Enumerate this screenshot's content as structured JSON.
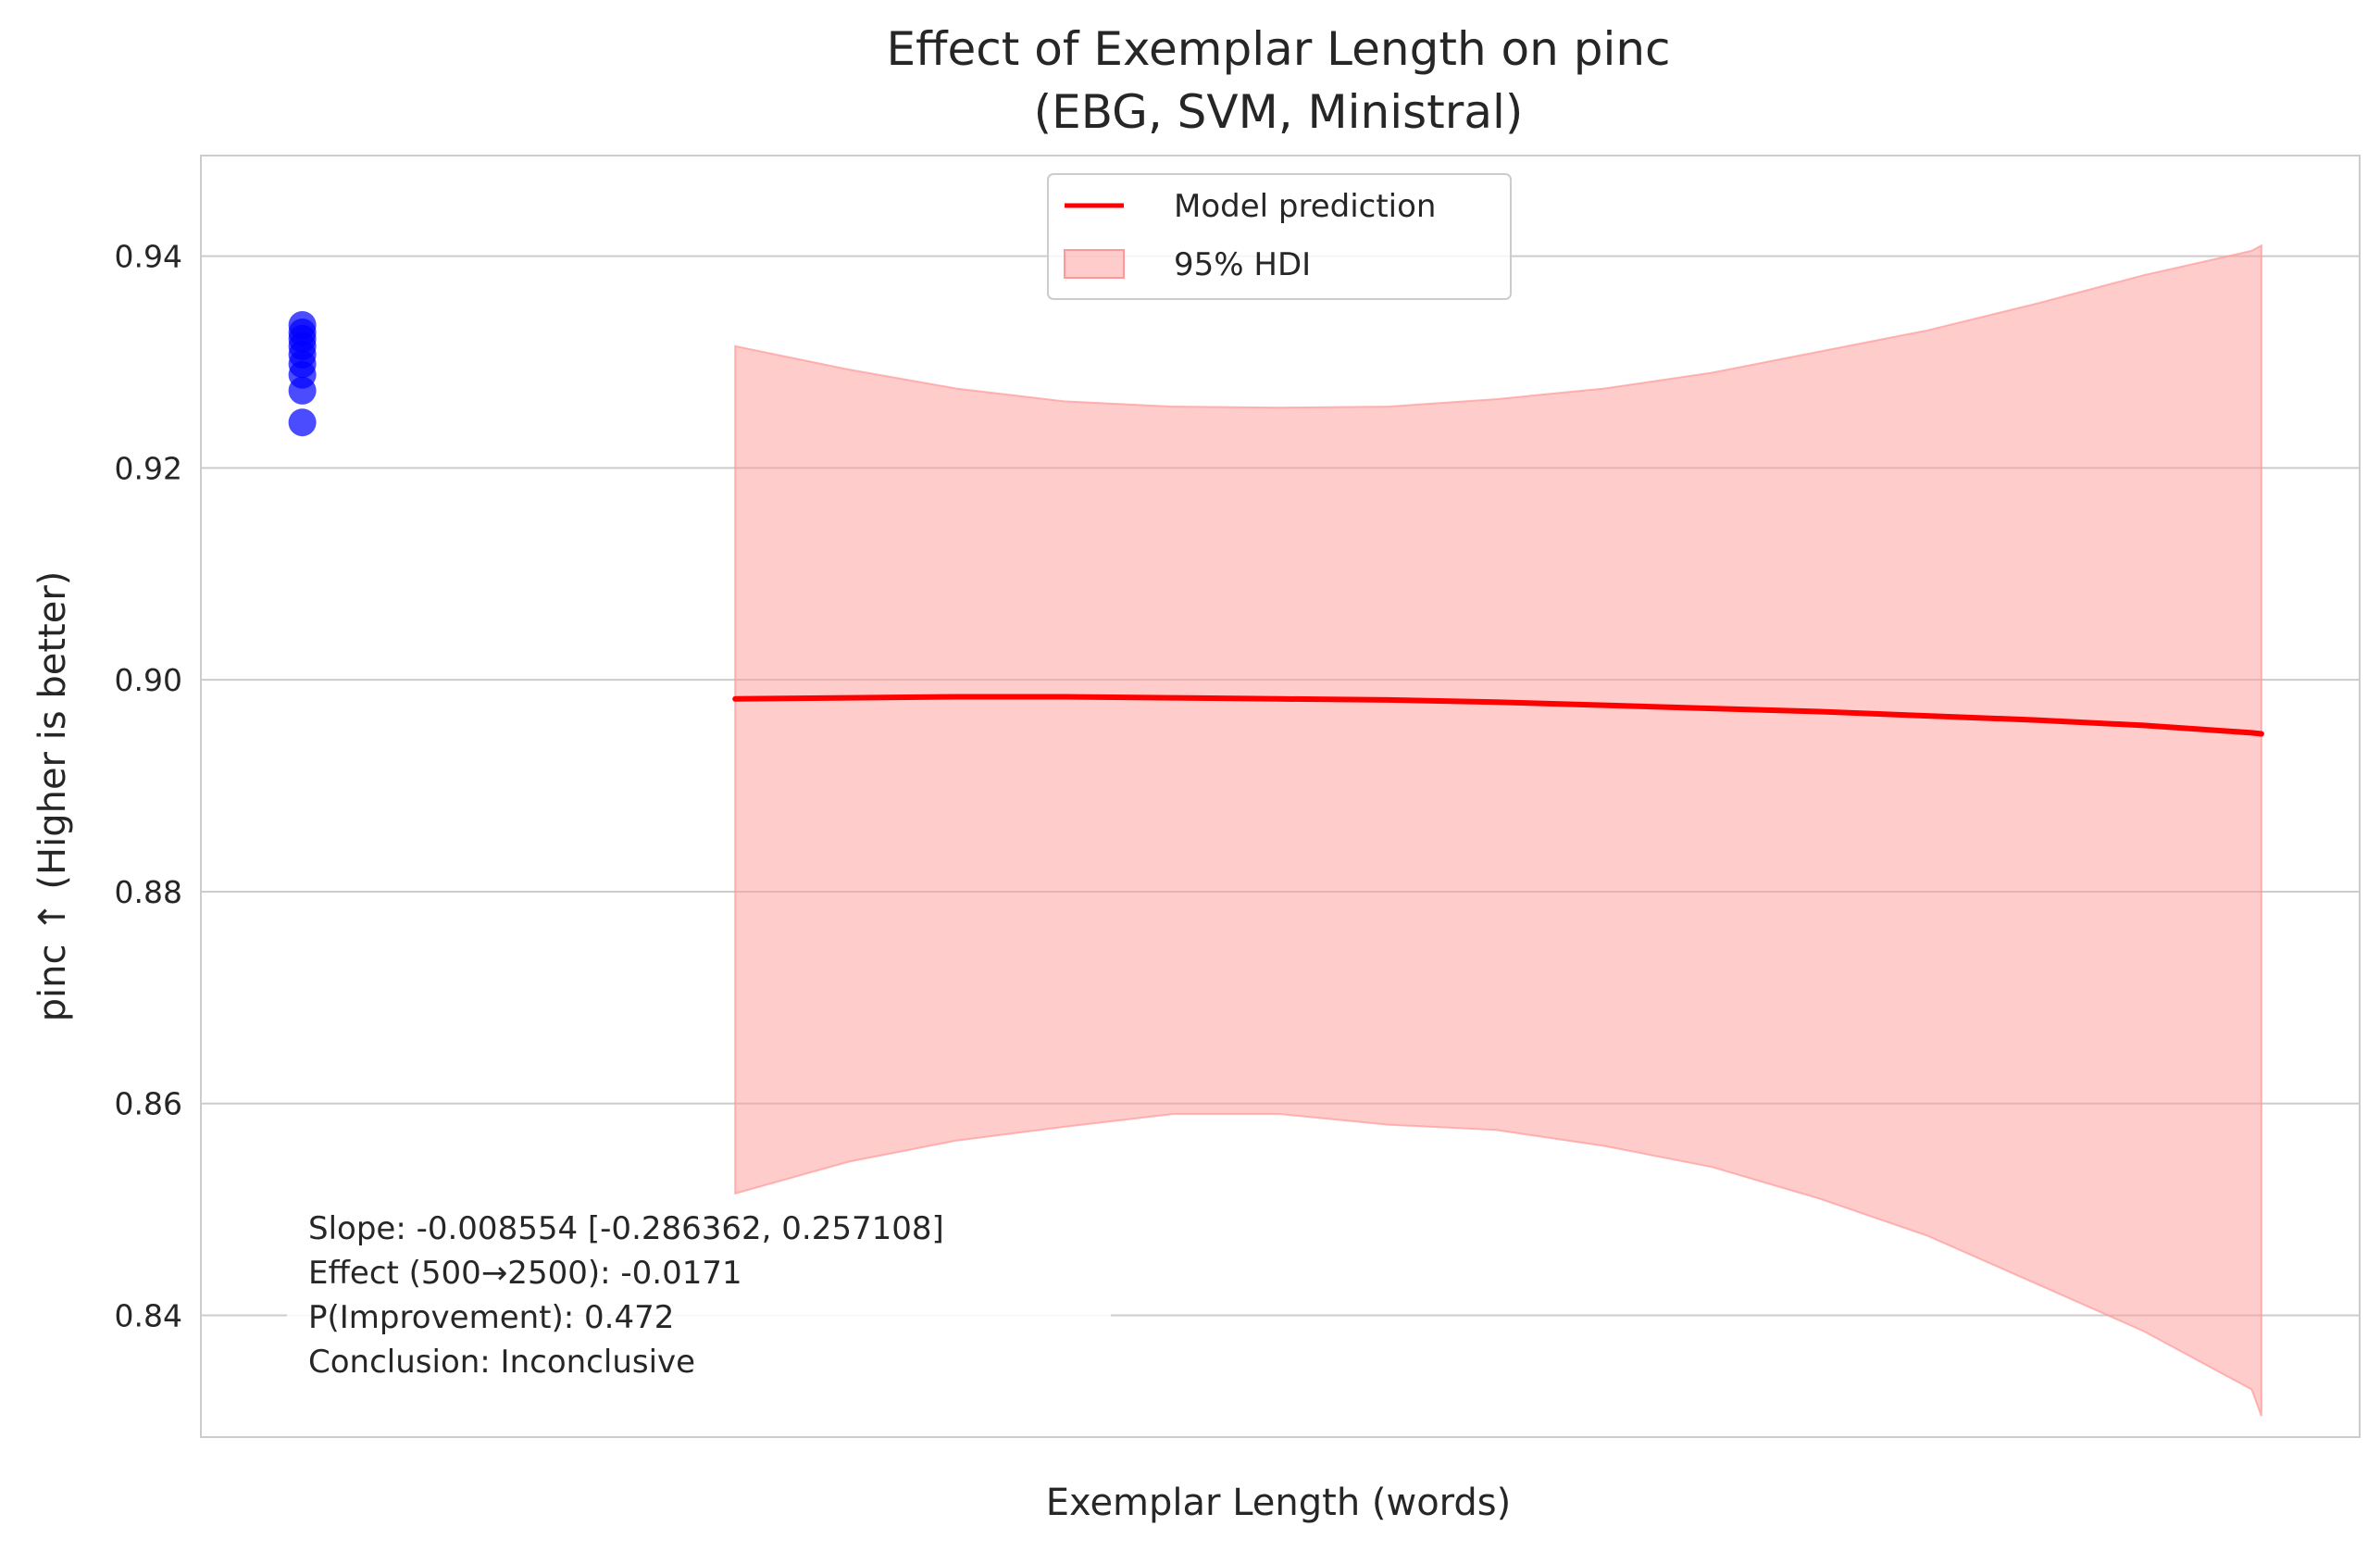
{
  "chart_data": {
    "type": "line",
    "title": "Effect of Exemplar Length on pinc",
    "subtitle": "(EBG, SVM, Ministral)",
    "xlabel": "Exemplar Length (words)",
    "ylabel": "pinc ↑ (Higher is better)",
    "ylim": [
      0.8285,
      0.9495
    ],
    "xlim": [
      0,
      1
    ],
    "grid": true,
    "yticks": [
      0.84,
      0.86,
      0.88,
      0.9,
      0.92,
      0.94
    ],
    "ytick_labels": [
      "0.84",
      "0.86",
      "0.88",
      "0.90",
      "0.92",
      "0.94"
    ],
    "legend": {
      "placement": "top-center",
      "entries": [
        {
          "label": "Model prediction",
          "kind": "line",
          "color": "#ff0000"
        },
        {
          "label": "95% HDI",
          "kind": "patch",
          "color": "#ffcccc"
        }
      ]
    },
    "observed_points": {
      "color": "#0000ff",
      "x": [
        0.047,
        0.047,
        0.047,
        0.047,
        0.047,
        0.047,
        0.047,
        0.047,
        0.047
      ],
      "y": [
        0.9335,
        0.9328,
        0.9322,
        0.9315,
        0.9307,
        0.9298,
        0.9288,
        0.9273,
        0.9243
      ]
    },
    "series": [
      {
        "name": "Model prediction",
        "color": "#ff0000",
        "x": [
          0.2475,
          0.3,
          0.35,
          0.4,
          0.45,
          0.5,
          0.55,
          0.6,
          0.65,
          0.7,
          0.75,
          0.8,
          0.85,
          0.9,
          0.95,
          0.9545
        ],
        "y": [
          0.8982,
          0.8983,
          0.8984,
          0.8984,
          0.8983,
          0.8982,
          0.8981,
          0.8979,
          0.8976,
          0.8973,
          0.897,
          0.8966,
          0.8962,
          0.8957,
          0.895,
          0.8949
        ]
      }
    ],
    "band": {
      "name": "95% HDI",
      "color": "#ff9999",
      "x": [
        0.2475,
        0.3,
        0.35,
        0.4,
        0.45,
        0.5,
        0.55,
        0.6,
        0.65,
        0.7,
        0.75,
        0.8,
        0.85,
        0.9,
        0.95,
        0.9545
      ],
      "upper": [
        0.9315,
        0.9293,
        0.9275,
        0.9263,
        0.9258,
        0.9257,
        0.9258,
        0.9265,
        0.9275,
        0.929,
        0.931,
        0.933,
        0.9355,
        0.9382,
        0.9405,
        0.941
      ],
      "lower": [
        0.8515,
        0.8545,
        0.8565,
        0.8578,
        0.859,
        0.859,
        0.858,
        0.8575,
        0.856,
        0.854,
        0.851,
        0.8475,
        0.843,
        0.8385,
        0.833,
        0.8305
      ]
    },
    "annotation": [
      "Slope: -0.008554 [-0.286362, 0.257108]",
      "Effect (500→2500): -0.0171",
      "P(Improvement): 0.472",
      "Conclusion: Inconclusive"
    ]
  }
}
